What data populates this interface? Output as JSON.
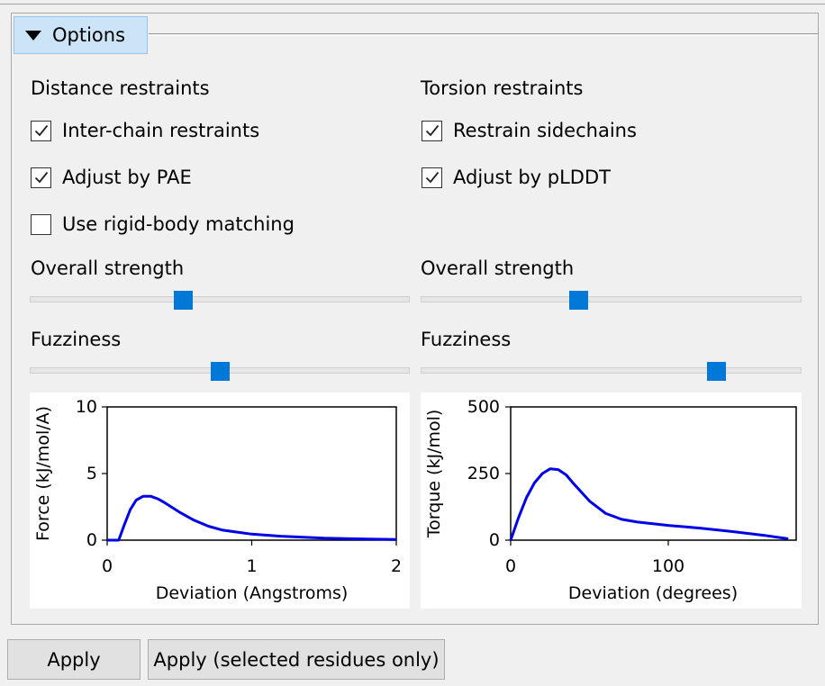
{
  "options": {
    "toggle_label": "Options",
    "distance": {
      "heading": "Distance restraints",
      "checks": [
        {
          "label": "Inter-chain restraints",
          "checked": true
        },
        {
          "label": "Adjust by PAE",
          "checked": true
        },
        {
          "label": "Use rigid-body matching",
          "checked": false
        }
      ],
      "strength_label": "Overall strength",
      "strength_value": 0.4,
      "fuzziness_label": "Fuzziness",
      "fuzziness_value": 0.5
    },
    "torsion": {
      "heading": "Torsion restraints",
      "checks": [
        {
          "label": "Restrain sidechains",
          "checked": true
        },
        {
          "label": "Adjust by pLDDT",
          "checked": true
        }
      ],
      "strength_label": "Overall strength",
      "strength_value": 0.41,
      "fuzziness_label": "Fuzziness",
      "fuzziness_value": 0.79
    }
  },
  "chart_data": [
    {
      "type": "line",
      "title": "",
      "xlabel": "Deviation (Angstroms)",
      "ylabel": "Force (kJ/mol/A)",
      "xlim": [
        0,
        2
      ],
      "ylim": [
        0,
        10
      ],
      "xticks": [
        "0",
        "1",
        "2"
      ],
      "yticks": [
        "0",
        "5",
        "10"
      ],
      "x": [
        0,
        0.05,
        0.08,
        0.12,
        0.16,
        0.2,
        0.25,
        0.3,
        0.35,
        0.4,
        0.5,
        0.6,
        0.7,
        0.8,
        1.0,
        1.2,
        1.5,
        1.8,
        2.0
      ],
      "y": [
        0,
        0,
        0,
        1.2,
        2.3,
        3.0,
        3.3,
        3.3,
        3.1,
        2.8,
        2.1,
        1.5,
        1.05,
        0.75,
        0.45,
        0.3,
        0.15,
        0.08,
        0.05
      ]
    },
    {
      "type": "line",
      "title": "",
      "xlabel": "Deviation (degrees)",
      "ylabel": "Torque (kJ/mol)",
      "xlim": [
        0,
        180
      ],
      "ylim": [
        0,
        500
      ],
      "xticks": [
        "0",
        "100"
      ],
      "yticks": [
        "0",
        "250",
        "500"
      ],
      "x": [
        0,
        5,
        10,
        15,
        20,
        25,
        30,
        35,
        40,
        50,
        60,
        70,
        80,
        100,
        120,
        140,
        160,
        175
      ],
      "y": [
        0,
        85,
        160,
        215,
        250,
        268,
        265,
        245,
        210,
        145,
        100,
        78,
        68,
        55,
        45,
        32,
        18,
        5
      ]
    }
  ],
  "buttons": {
    "apply": "Apply",
    "apply_selected": "Apply (selected residues only)"
  }
}
